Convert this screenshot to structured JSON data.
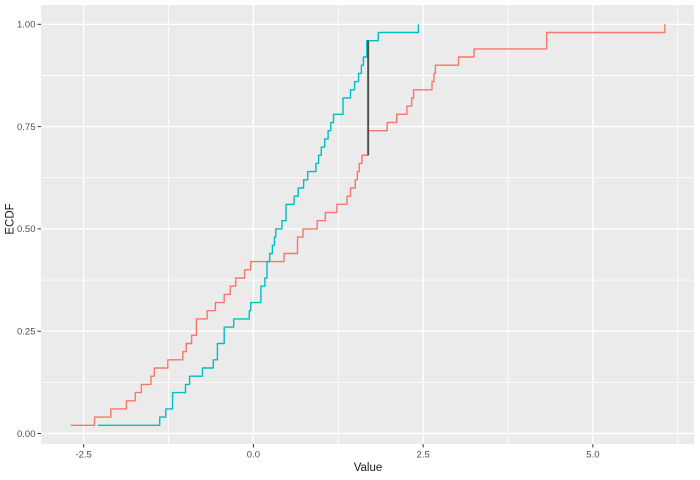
{
  "figure": {
    "kind": "ggplot-ecdf-plot",
    "title": "",
    "legend": "none"
  },
  "style": {
    "background": "#FFFFFF",
    "panel_bg": "#EBEBEB",
    "grid_color": "#FFFFFF",
    "tick_color": "#333333",
    "tick_label_color": "#4D4D4D",
    "axis_title_color": "#1A1A1A",
    "series1_color": "#F8766D",
    "series2_color": "#00BFC4",
    "ks_line_color": "#4D4D4D"
  },
  "x_axis": {
    "title": "Value",
    "major_ticks": [
      -2.5,
      0.0,
      2.5,
      5.0
    ],
    "tick_labels": [
      "-2.5",
      "0.0",
      "2.5",
      "5.0"
    ],
    "minor_ticks": [
      -1.25,
      1.25,
      3.75,
      6.25
    ]
  },
  "y_axis": {
    "title": "ECDF",
    "major_ticks": [
      0.0,
      0.25,
      0.5,
      0.75,
      1.0
    ],
    "tick_labels": [
      "0.00",
      "0.25",
      "0.50",
      "0.75",
      "1.00"
    ],
    "minor_ticks": [
      0.125,
      0.375,
      0.625,
      0.875
    ]
  },
  "chart_data": {
    "type": "line",
    "subtype": "ecdf-step",
    "title": "",
    "xlabel": "Value",
    "ylabel": "ECDF",
    "xlim": [
      -3.13,
      6.49
    ],
    "ylim": [
      -0.027,
      1.046
    ],
    "grid": "white major+minor on gray panel",
    "legend_position": "none",
    "series": [
      {
        "name": "sample-red",
        "color": "#F8766D",
        "n": 50,
        "step": 0.02,
        "sorted_values": [
          -2.69,
          -2.34,
          -2.1,
          -1.87,
          -1.74,
          -1.65,
          -1.51,
          -1.46,
          -1.26,
          -1.04,
          -0.99,
          -0.91,
          -0.84,
          -0.84,
          -0.68,
          -0.56,
          -0.43,
          -0.34,
          -0.26,
          -0.13,
          -0.04,
          0.45,
          0.65,
          0.65,
          0.73,
          0.94,
          1.06,
          1.23,
          1.38,
          1.43,
          1.5,
          1.53,
          1.56,
          1.6,
          1.69,
          1.69,
          1.69,
          1.97,
          2.11,
          2.26,
          2.33,
          2.36,
          2.63,
          2.66,
          2.68,
          3.02,
          3.25,
          4.32,
          4.32,
          6.06
        ]
      },
      {
        "name": "sample-teal",
        "color": "#00BFC4",
        "n": 50,
        "step": 0.02,
        "sorted_values": [
          -2.29,
          -1.38,
          -1.29,
          -1.19,
          -1.19,
          -1.0,
          -0.94,
          -0.75,
          -0.59,
          -0.53,
          -0.53,
          -0.43,
          -0.43,
          -0.29,
          -0.06,
          -0.04,
          0.11,
          0.11,
          0.17,
          0.2,
          0.2,
          0.24,
          0.28,
          0.31,
          0.33,
          0.42,
          0.48,
          0.48,
          0.6,
          0.66,
          0.74,
          0.8,
          0.92,
          0.96,
          1.0,
          1.05,
          1.1,
          1.14,
          1.18,
          1.32,
          1.32,
          1.43,
          1.49,
          1.55,
          1.59,
          1.62,
          1.67,
          1.67,
          1.84,
          2.43
        ]
      }
    ],
    "ks_line": {
      "x": 1.69,
      "from_ecdf": 0.68,
      "to_ecdf": 0.96,
      "distance": 0.28
    }
  }
}
